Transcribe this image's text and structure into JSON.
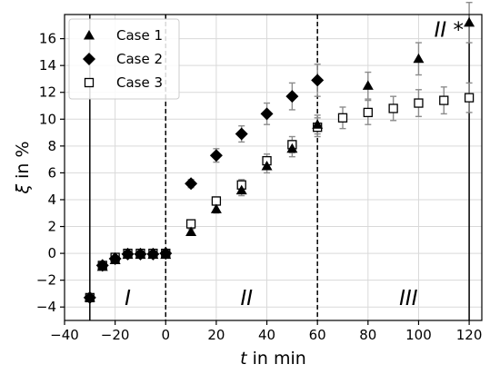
{
  "chart_data": {
    "type": "scatter",
    "xlabel_symbol": "t",
    "xlabel_suffix": " in min",
    "ylabel_symbol": "ξ",
    "ylabel_suffix": " in %",
    "xlim": [
      -40,
      125
    ],
    "ylim": [
      -5,
      17.8
    ],
    "xticks": [
      -40,
      -20,
      0,
      20,
      40,
      60,
      80,
      100,
      120
    ],
    "yticks": [
      -4,
      -2,
      0,
      2,
      4,
      6,
      8,
      10,
      12,
      14,
      16
    ],
    "grid": true,
    "legend_position": "top-left",
    "colors": {
      "marker": "#000000",
      "errorbar": "#8c8c8c",
      "grid": "#d9d9d9"
    },
    "series": [
      {
        "name": "Case 1",
        "marker": "triangle",
        "x": [
          -30,
          -25,
          -20,
          -15,
          -10,
          -5,
          0,
          10,
          20,
          30,
          40,
          50,
          60,
          80,
          100,
          120
        ],
        "y": [
          -3.3,
          -1.0,
          -0.5,
          -0.1,
          -0.1,
          -0.1,
          -0.1,
          1.6,
          3.3,
          4.7,
          6.5,
          7.8,
          9.6,
          12.5,
          14.5,
          17.2
        ],
        "err": [
          0,
          0,
          0,
          0,
          0,
          0,
          0,
          0.2,
          0.3,
          0.4,
          0.5,
          0.6,
          0.7,
          1.0,
          1.2,
          1.5
        ]
      },
      {
        "name": "Case 2",
        "marker": "diamond",
        "x": [
          -30,
          -25,
          -20,
          -15,
          -10,
          -5,
          0,
          10,
          20,
          30,
          40,
          50,
          60
        ],
        "y": [
          -3.3,
          -0.9,
          -0.4,
          -0.05,
          -0.05,
          -0.05,
          0,
          5.2,
          7.3,
          8.9,
          10.4,
          11.7,
          12.9
        ],
        "err": [
          0,
          0,
          0,
          0,
          0,
          0,
          0,
          0.3,
          0.5,
          0.6,
          0.8,
          1.0,
          1.2
        ]
      },
      {
        "name": "Case 3",
        "marker": "square",
        "x": [
          -30,
          -25,
          -20,
          -15,
          -10,
          -5,
          0,
          10,
          20,
          30,
          40,
          50,
          60,
          70,
          80,
          90,
          100,
          110,
          120
        ],
        "y": [
          -3.3,
          -0.9,
          -0.3,
          0,
          0,
          0,
          0,
          2.2,
          3.9,
          5.1,
          6.9,
          8.1,
          9.4,
          10.1,
          10.5,
          10.8,
          11.2,
          11.4,
          11.6
        ],
        "err": [
          0,
          0,
          0,
          0,
          0,
          0,
          0,
          0.2,
          0.3,
          0.4,
          0.5,
          0.6,
          0.7,
          0.8,
          0.9,
          0.9,
          1.0,
          1.0,
          1.1
        ]
      }
    ],
    "vlines": [
      {
        "x": -30,
        "style": "solid"
      },
      {
        "x": 0,
        "style": "dashed"
      },
      {
        "x": 60,
        "style": "dashed"
      },
      {
        "x": 120,
        "style": "solid"
      }
    ],
    "annotations": [
      {
        "text": "I",
        "x": -15,
        "y": -3.3
      },
      {
        "text": "II",
        "x": 32,
        "y": -3.3
      },
      {
        "text": "III",
        "x": 96,
        "y": -3.3
      },
      {
        "text": "II *",
        "x": 112,
        "y": 16.7
      }
    ]
  }
}
